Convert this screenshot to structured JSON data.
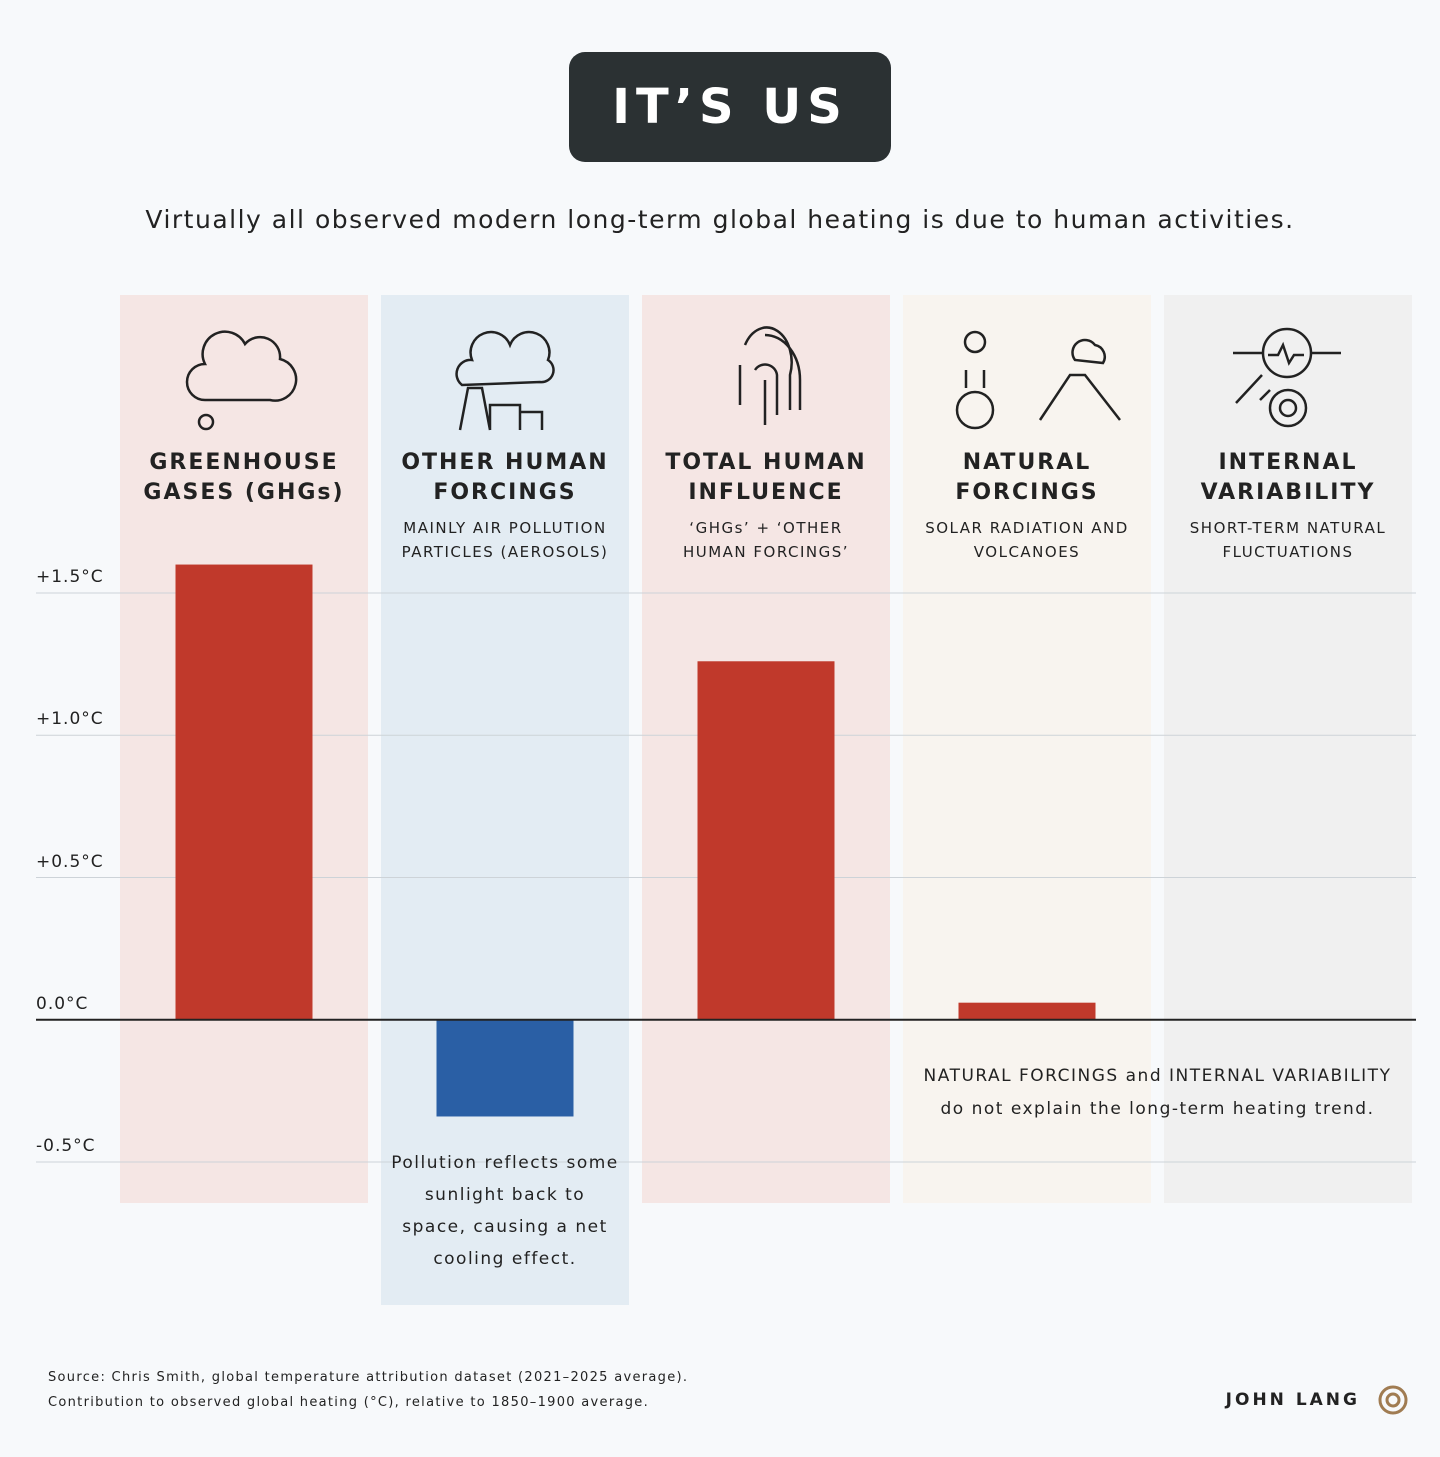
{
  "chart_data": {
    "type": "bar",
    "title": "IT’S US",
    "subtitle": "Virtually all observed modern long-term global heating is due to human activities.",
    "categories": [
      "GREENHOUSE GASES (GHGs)",
      "OTHER HUMAN FORCINGS",
      "TOTAL HUMAN INFLUENCE",
      "NATURAL FORCINGS",
      "INTERNAL VARIABILITY"
    ],
    "category_notes": [
      "MAINLY AIR POLLUTION PARTICLES (AEROSOLS)",
      "‘GHGs’ + ‘OTHER HUMAN FORCINGS’",
      "SOLAR RADIATION AND VOLCANOES",
      "SHORT-TERM NATURAL FLUCTUATIONS"
    ],
    "values": [
      1.6,
      -0.34,
      1.26,
      0.06,
      0
    ],
    "colors": [
      "#c0392b",
      "#2a5fa5",
      "#c0392b",
      "#c0392b",
      "#c0392b"
    ],
    "ylim": [
      -0.5,
      1.5
    ],
    "yticks": [
      {
        "value": -0.5,
        "label": "-0.5°C"
      },
      {
        "value": 0,
        "label": "0.0°C"
      },
      {
        "value": 0.5,
        "label": "+0.5°C"
      },
      {
        "value": 1,
        "label": "+1.0°C"
      },
      {
        "value": 1.5,
        "label": "+1.5°C"
      }
    ],
    "grid": true,
    "annotations": [
      "Pollution reflects some sunlight back to space, causing a net cooling effect.",
      "NATURAL FORCINGS and INTERNAL VARIABILITY do not explain the long-term heating trend."
    ],
    "source": [
      "Source: Chris Smith, global temperature attribution dataset (2021–2025 average).",
      "Contribution to observed global heating (°C), relative to 1850–1900 average."
    ],
    "credit": "JOHN LANG"
  }
}
